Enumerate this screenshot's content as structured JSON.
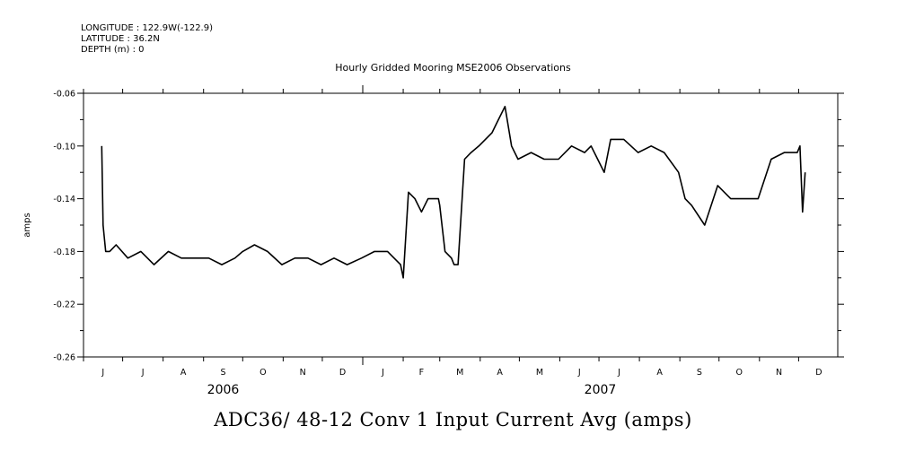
{
  "header": {
    "longitude": "LONGITUDE : 122.9W(-122.9)",
    "latitude": "LATITUDE : 36.2N",
    "depth": "DEPTH (m) : 0"
  },
  "chart_data": {
    "type": "line",
    "title": "Hourly Gridded Mooring MSE2006 Observations",
    "main_title": "ADC36/ 48-12 Conv 1 Input Current Avg (amps)",
    "ylabel": "amps",
    "ylim": [
      -0.26,
      -0.06
    ],
    "yticks": [
      -0.06,
      -0.1,
      -0.14,
      -0.18,
      -0.22,
      -0.26
    ],
    "ytick_labels": [
      "-0.06",
      "-0.10",
      "-0.14",
      "-0.18",
      "-0.22",
      "-0.26"
    ],
    "xlim": [
      "2006-06-01",
      "2007-12-31"
    ],
    "month_labels": [
      "J",
      "J",
      "A",
      "S",
      "O",
      "N",
      "D",
      "J",
      "F",
      "M",
      "A",
      "M",
      "J",
      "J",
      "A",
      "S",
      "O",
      "N",
      "D"
    ],
    "year_labels": [
      "2006",
      "2007"
    ],
    "grid": false,
    "series": [
      {
        "color": "#000000",
        "x": [
          "2006-06-15",
          "2006-06-16",
          "2006-06-18",
          "2006-06-21",
          "2006-06-26",
          "2006-07-05",
          "2006-07-15",
          "2006-07-25",
          "2006-08-05",
          "2006-08-15",
          "2006-08-25",
          "2006-09-05",
          "2006-09-15",
          "2006-09-25",
          "2006-10-01",
          "2006-10-10",
          "2006-10-20",
          "2006-10-31",
          "2006-11-10",
          "2006-11-20",
          "2006-11-30",
          "2006-12-10",
          "2006-12-20",
          "2006-12-31",
          "2007-01-10",
          "2007-01-20",
          "2007-01-30",
          "2007-02-01",
          "2007-02-05",
          "2007-02-10",
          "2007-02-15",
          "2007-02-20",
          "2007-02-28",
          "2007-03-01",
          "2007-03-05",
          "2007-03-10",
          "2007-03-12",
          "2007-03-15",
          "2007-03-20",
          "2007-03-25",
          "2007-03-31",
          "2007-04-10",
          "2007-04-15",
          "2007-04-20",
          "2007-04-25",
          "2007-04-30",
          "2007-05-10",
          "2007-05-20",
          "2007-05-31",
          "2007-06-10",
          "2007-06-20",
          "2007-06-25",
          "2007-06-30",
          "2007-07-05",
          "2007-07-10",
          "2007-07-20",
          "2007-07-31",
          "2007-08-10",
          "2007-08-20",
          "2007-08-31",
          "2007-09-05",
          "2007-09-10",
          "2007-09-20",
          "2007-09-30",
          "2007-10-10",
          "2007-10-20",
          "2007-10-31",
          "2007-11-10",
          "2007-11-20",
          "2007-11-30",
          "2007-12-02",
          "2007-12-04",
          "2007-12-06"
        ],
        "y": [
          -0.1,
          -0.16,
          -0.18,
          -0.18,
          -0.175,
          -0.185,
          -0.18,
          -0.19,
          -0.18,
          -0.185,
          -0.185,
          -0.185,
          -0.19,
          -0.185,
          -0.18,
          -0.175,
          -0.18,
          -0.19,
          -0.185,
          -0.185,
          -0.19,
          -0.185,
          -0.19,
          -0.185,
          -0.18,
          -0.18,
          -0.19,
          -0.2,
          -0.135,
          -0.14,
          -0.15,
          -0.14,
          -0.14,
          -0.145,
          -0.18,
          -0.185,
          -0.19,
          -0.19,
          -0.11,
          -0.105,
          -0.1,
          -0.09,
          -0.08,
          -0.07,
          -0.1,
          -0.11,
          -0.105,
          -0.11,
          -0.11,
          -0.1,
          -0.105,
          -0.1,
          -0.11,
          -0.12,
          -0.095,
          -0.095,
          -0.105,
          -0.1,
          -0.105,
          -0.12,
          -0.14,
          -0.145,
          -0.16,
          -0.13,
          -0.14,
          -0.14,
          -0.14,
          -0.11,
          -0.105,
          -0.105,
          -0.1,
          -0.15,
          -0.12
        ]
      }
    ]
  }
}
